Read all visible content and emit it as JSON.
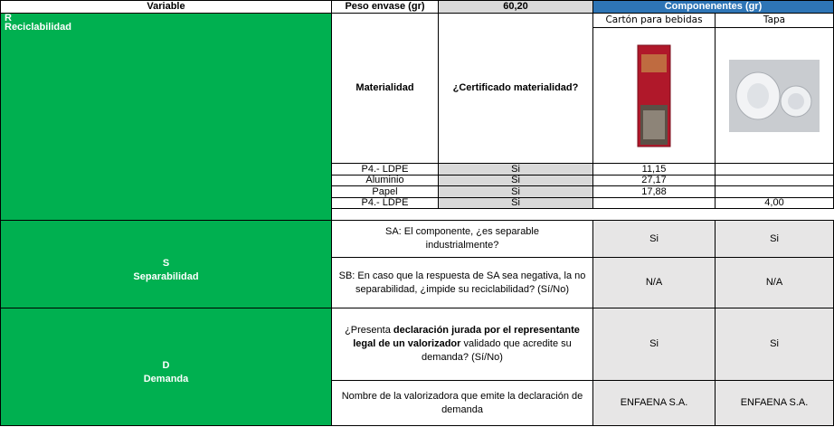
{
  "header": {
    "variable": "Variable",
    "peso_label": "Peso envase (gr)",
    "peso_value": "60,20",
    "componentes": "Componenentes (gr)"
  },
  "components": [
    "Cartón para bebidas",
    "Tapa"
  ],
  "reciclabilidad": {
    "letter": "R",
    "name": "Reciclabilidad",
    "col1": "Materialidad",
    "col2": "¿Certificado materialidad?",
    "rows": [
      [
        "P4.- LDPE",
        "Si",
        "11,15",
        null
      ],
      [
        "Aluminio",
        "Si",
        "27,17",
        null
      ],
      [
        "Papel",
        "Si",
        "17,88",
        null
      ],
      [
        "P4.- LDPE",
        "Si",
        null,
        "4,00"
      ]
    ]
  },
  "separabilidad": {
    "letter": "S",
    "name": "Separabilidad",
    "rows": [
      {
        "question": "SA: El componente, ¿es separable industrialmente?",
        "answers": [
          "Si",
          "Si"
        ]
      },
      {
        "question": "SB: En caso que la respuesta de SA sea negativa, la no separabilidad, ¿impide su reciclabilidad? (Sí/No)",
        "answers": [
          "N/A",
          "N/A"
        ]
      }
    ]
  },
  "demanda": {
    "letter": "D",
    "name": "Demanda",
    "q1_parts": [
      "¿Presenta ",
      "declaración jurada por el representante legal  de un valorizador",
      " validado que acredite su demanda? (Sí/No)"
    ],
    "q1_answers": [
      "Si",
      "Si"
    ],
    "q2": "Nombre de la valorizadora que emite la declaración de demanda",
    "q2_answers": [
      "ENFAENA S.A.",
      "ENFAENA S.A."
    ]
  }
}
